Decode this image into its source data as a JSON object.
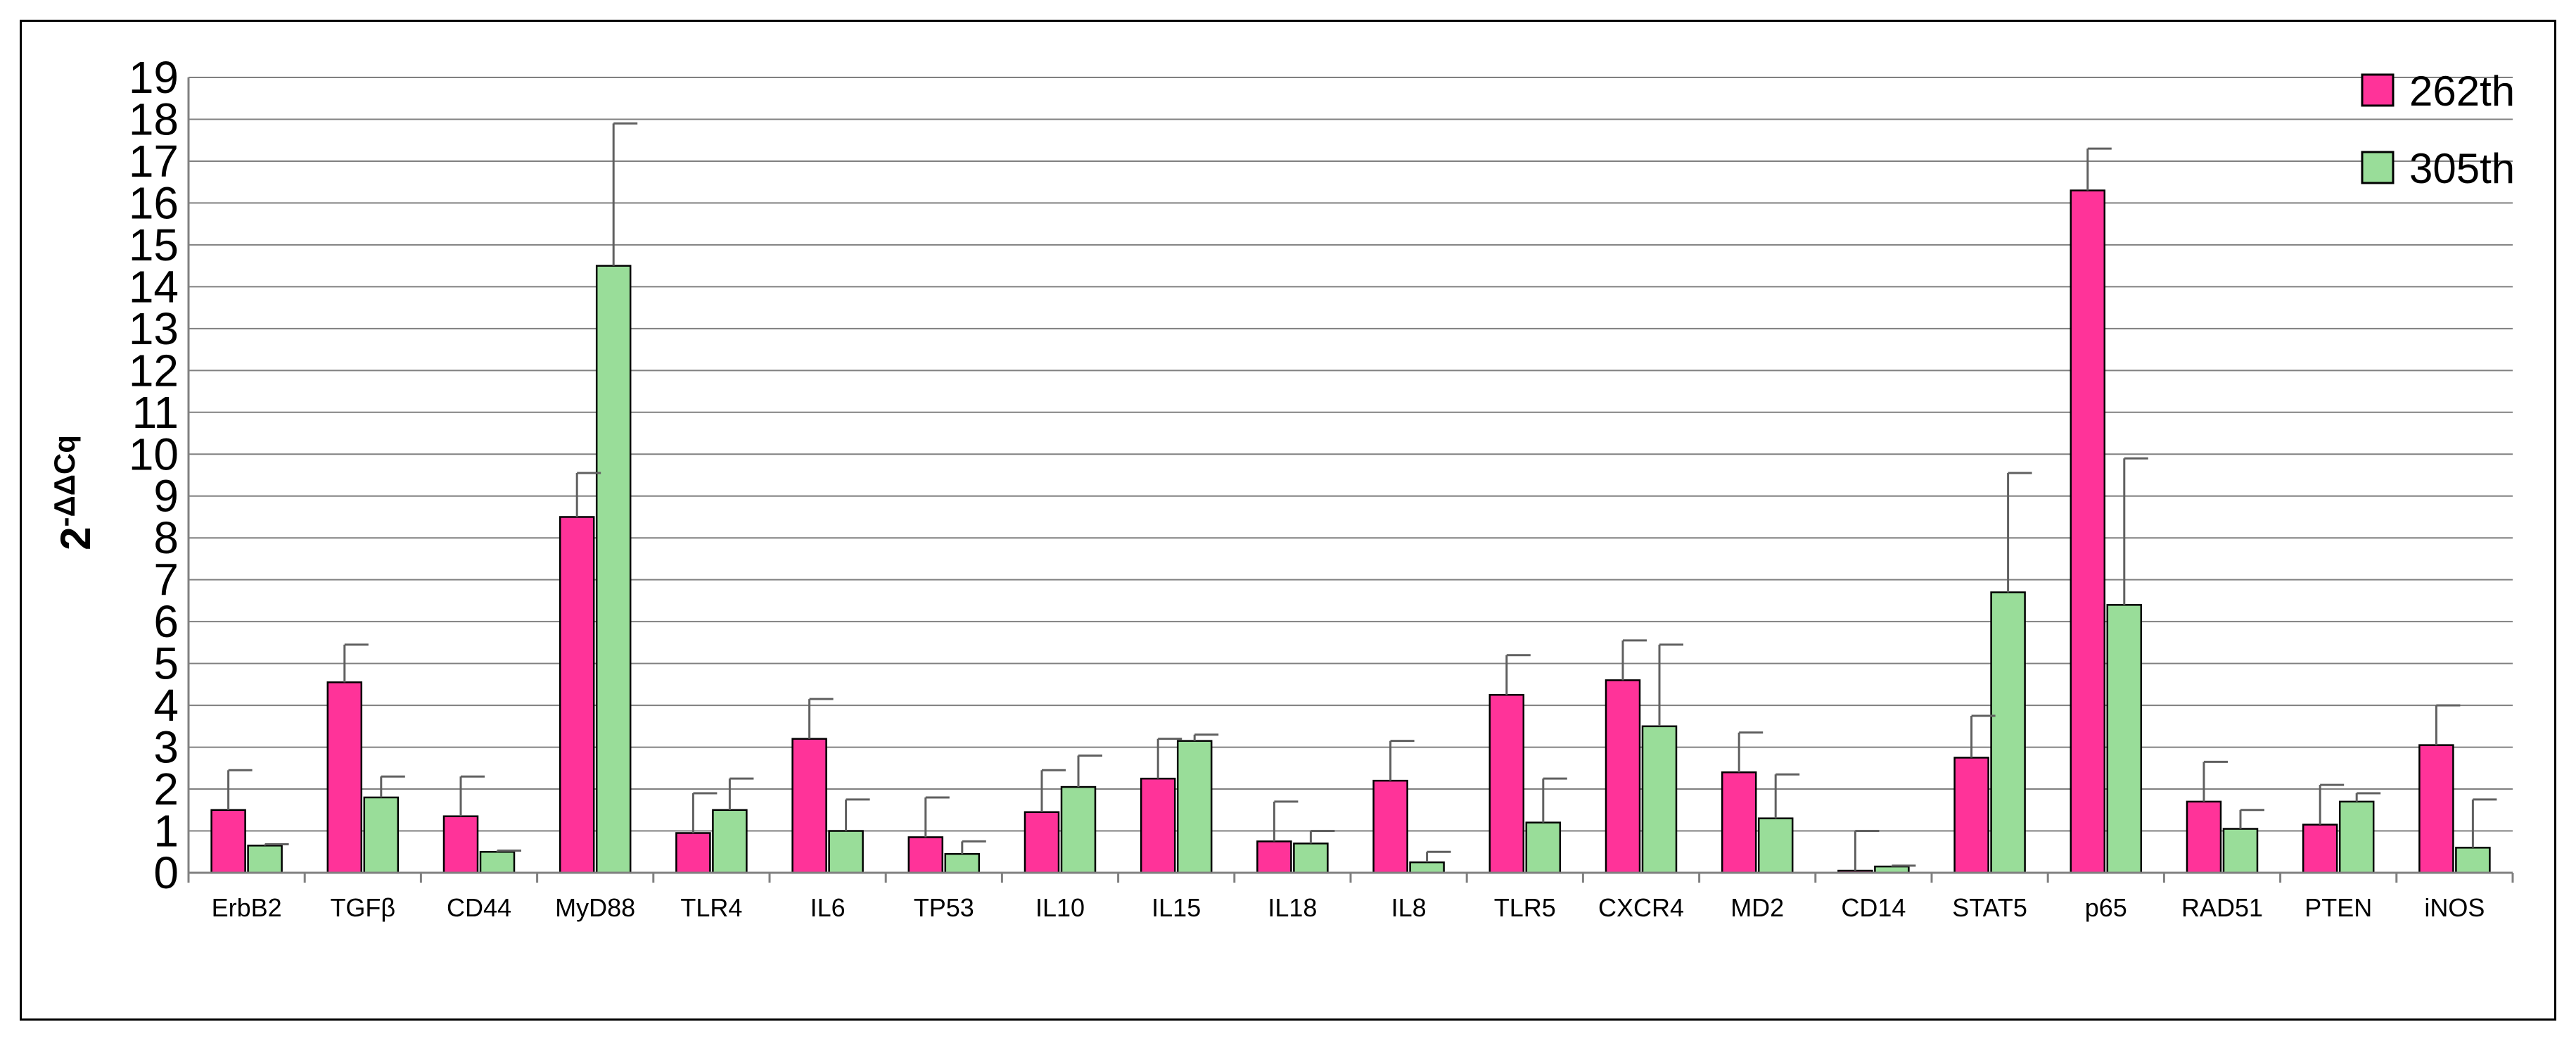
{
  "chart_data": {
    "type": "bar",
    "title": "",
    "xlabel": "",
    "ylabel_main": "2",
    "ylabel_sup": "-ΔΔCq",
    "ylim": [
      0,
      19
    ],
    "ytick_step": 1,
    "grid": true,
    "legend_position": "top-right",
    "categories": [
      "ErbB2",
      "TGFβ",
      "CD44",
      "MyD88",
      "TLR4",
      "IL6",
      "TP53",
      "IL10",
      "IL15",
      "IL18",
      "IL8",
      "TLR5",
      "CXCR4",
      "MD2",
      "CD14",
      "STAT5",
      "p65",
      "RAD51",
      "PTEN",
      "iNOS"
    ],
    "series": [
      {
        "name": "262th",
        "color": "#ff3399",
        "values": [
          1.5,
          4.55,
          1.35,
          8.5,
          0.95,
          3.2,
          0.85,
          1.45,
          2.25,
          0.75,
          2.2,
          4.25,
          4.6,
          2.4,
          0.05,
          2.75,
          16.3,
          1.7,
          1.15,
          3.05
        ],
        "errors": [
          0.95,
          0.9,
          0.95,
          1.05,
          0.95,
          0.95,
          0.95,
          1.0,
          0.95,
          0.95,
          0.95,
          0.95,
          0.95,
          0.95,
          0.95,
          1.0,
          1.0,
          0.95,
          0.95,
          0.95
        ]
      },
      {
        "name": "305th",
        "color": "#99dd99",
        "values": [
          0.65,
          1.8,
          0.5,
          14.5,
          1.5,
          1.0,
          0.45,
          2.05,
          3.15,
          0.7,
          0.25,
          1.2,
          3.5,
          1.3,
          0.15,
          6.7,
          6.4,
          1.05,
          1.7,
          0.6
        ],
        "errors": [
          0.03,
          0.5,
          0.03,
          3.4,
          0.75,
          0.75,
          0.3,
          0.75,
          0.15,
          0.3,
          0.25,
          1.05,
          1.95,
          1.05,
          0.02,
          2.85,
          3.5,
          0.45,
          0.2,
          1.15
        ]
      }
    ]
  }
}
